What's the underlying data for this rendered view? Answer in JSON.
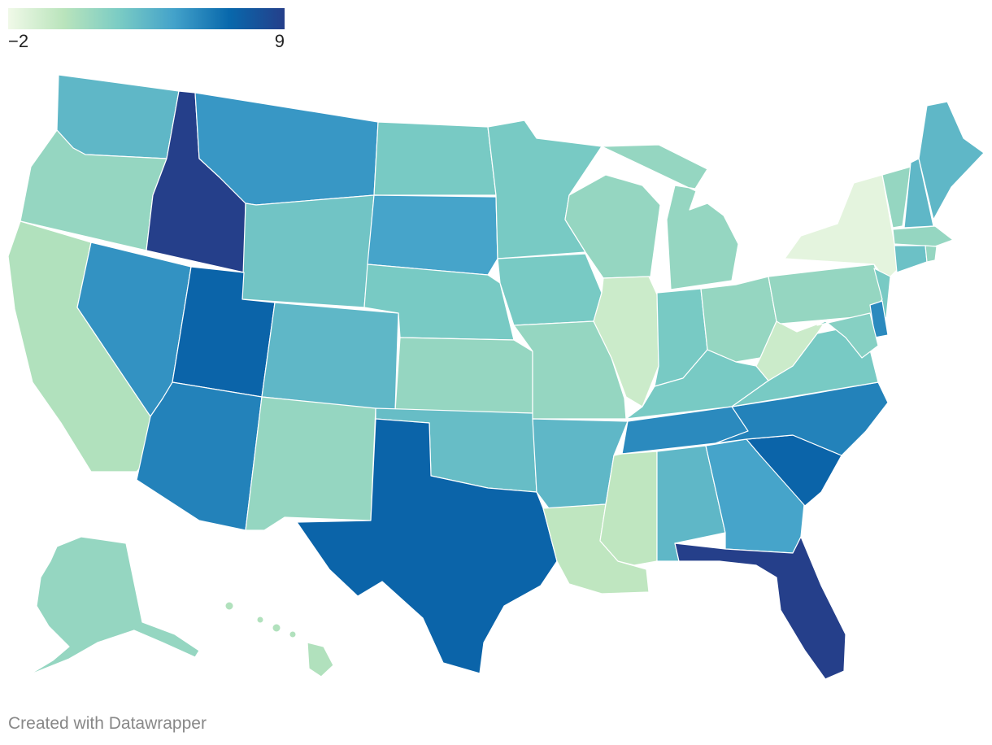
{
  "legend": {
    "min_label": "−2",
    "max_label": "9",
    "min": -2,
    "max": 9,
    "gradient_colors": [
      "#f0f9e8",
      "#bae4bc",
      "#7bccc4",
      "#43a2ca",
      "#0868ac",
      "#253f8a"
    ]
  },
  "credit": "Created with Datawrapper",
  "state_values": {
    "WA": 3.5,
    "OR": 1.5,
    "CA": 0.5,
    "ID": 9,
    "NV": 5.2,
    "MT": 5.0,
    "WY": 2.8,
    "UT": 7.0,
    "AZ": 5.8,
    "CO": 3.5,
    "NM": 1.5,
    "ND": 2.5,
    "SD": 4.5,
    "NE": 2.5,
    "KS": 1.5,
    "OK": 3.2,
    "TX": 7.0,
    "MN": 2.5,
    "IA": 2.5,
    "MO": 1.5,
    "AR": 3.5,
    "LA": 0.0,
    "WI": 1.5,
    "IL": -0.5,
    "MI": 1.5,
    "IN": 2.5,
    "OH": 1.5,
    "KY": 2.5,
    "TN": 5.5,
    "MS": 0.0,
    "AL": 3.5,
    "GA": 4.5,
    "FL": 9,
    "SC": 7.0,
    "NC": 5.8,
    "VA": 2.5,
    "WV": -0.5,
    "PA": 1.5,
    "NY": -1.5,
    "VT": 1.5,
    "NH": 3.5,
    "ME": 3.5,
    "MA": 1.5,
    "RI": 1.5,
    "CT": 3.0,
    "NJ": 2.5,
    "DE": 5.5,
    "MD": 2.0,
    "AK": 1.5,
    "HI": 0.5
  }
}
